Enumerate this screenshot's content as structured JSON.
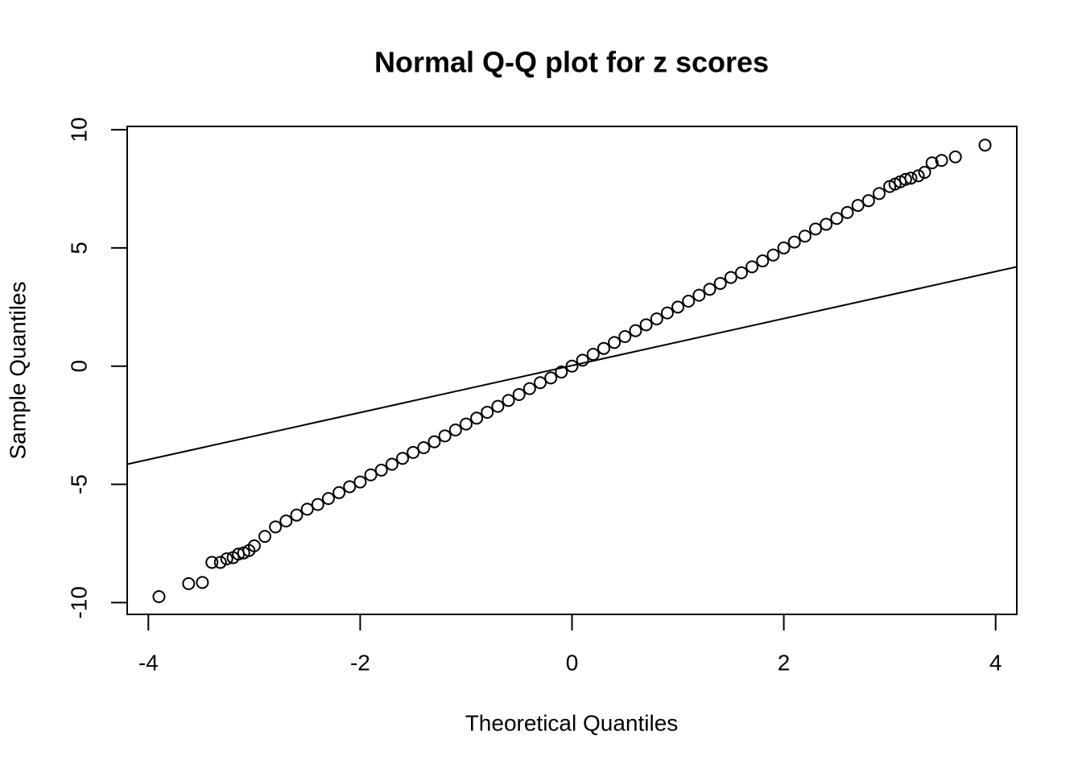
{
  "chart_data": {
    "type": "scatter",
    "title": "Normal Q-Q plot for z scores",
    "x_label": "Theoretical Quantiles",
    "y_label": "Sample Quantiles",
    "xlim": [
      -4.2,
      4.2
    ],
    "ylim": [
      -10.5,
      10.14
    ],
    "xticks": [
      -4,
      -2,
      0,
      2,
      4
    ],
    "yticks": [
      -10,
      -5,
      0,
      5,
      10
    ],
    "color": "#000000",
    "x": [
      -3.9,
      -3.62,
      -3.49,
      -3.4,
      -3.32,
      -3.26,
      -3.2,
      -3.15,
      -3.1,
      -3.05,
      -3.0,
      -2.9,
      -2.8,
      -2.7,
      -2.6,
      -2.5,
      -2.4,
      -2.3,
      -2.2,
      -2.1,
      -2.0,
      -1.9,
      -1.8,
      -1.7,
      -1.6,
      -1.5,
      -1.4,
      -1.3,
      -1.2,
      -1.1,
      -1.0,
      -0.9,
      -0.8,
      -0.7,
      -0.6,
      -0.5,
      -0.4,
      -0.3,
      -0.2,
      -0.1,
      0,
      0.1,
      0.2,
      0.3,
      0.4,
      0.5,
      0.6,
      0.7,
      0.8,
      0.9,
      1.0,
      1.1,
      1.2,
      1.3,
      1.4,
      1.5,
      1.6,
      1.7,
      1.8,
      1.9,
      2.0,
      2.1,
      2.2,
      2.3,
      2.4,
      2.5,
      2.6,
      2.7,
      2.8,
      2.9,
      3.0,
      3.05,
      3.1,
      3.15,
      3.2,
      3.27,
      3.33,
      3.4,
      3.49,
      3.62,
      3.9
    ],
    "values": [
      -9.75,
      -9.2,
      -9.15,
      -8.3,
      -8.3,
      -8.15,
      -8.1,
      -7.95,
      -7.9,
      -7.8,
      -7.6,
      -7.2,
      -6.8,
      -6.55,
      -6.3,
      -6.05,
      -5.85,
      -5.6,
      -5.35,
      -5.1,
      -4.9,
      -4.6,
      -4.4,
      -4.15,
      -3.9,
      -3.65,
      -3.45,
      -3.2,
      -2.95,
      -2.7,
      -2.45,
      -2.2,
      -1.95,
      -1.7,
      -1.45,
      -1.2,
      -0.95,
      -0.7,
      -0.5,
      -0.25,
      0,
      0.25,
      0.5,
      0.75,
      1.0,
      1.25,
      1.5,
      1.75,
      2.0,
      2.25,
      2.5,
      2.75,
      3.0,
      3.25,
      3.5,
      3.75,
      3.95,
      4.2,
      4.45,
      4.7,
      5.0,
      5.25,
      5.5,
      5.8,
      6.0,
      6.25,
      6.5,
      6.8,
      7.0,
      7.3,
      7.6,
      7.7,
      7.8,
      7.9,
      7.95,
      8.05,
      8.2,
      8.6,
      8.7,
      8.85,
      9.35
    ],
    "reference_line": {
      "x": [
        -4.2,
        4.2
      ],
      "values": [
        -4.15,
        4.2
      ]
    }
  }
}
